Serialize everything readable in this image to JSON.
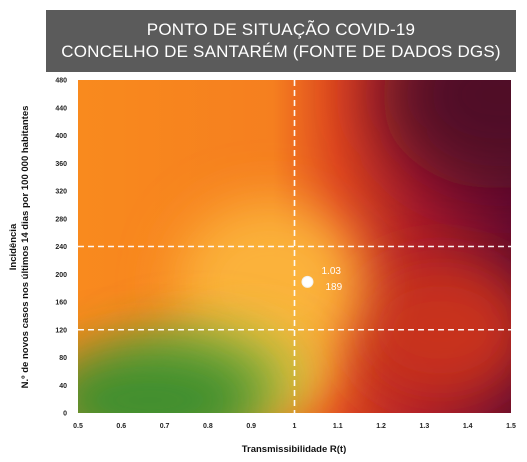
{
  "chart_data": {
    "type": "scatter",
    "title_lines": [
      "PONTO DE SITUAÇÃO COVID-19",
      "CONCELHO DE SANTARÉM (FONTE DE DADOS DGS)"
    ],
    "xlabel": "Transmissibilidade R(t)",
    "ylabel_lines": [
      "Incidência",
      "N.º de novos casos nos últimos 14 dias por 100 000 habitantes"
    ],
    "xlim": [
      0.5,
      1.5
    ],
    "ylim": [
      0,
      480
    ],
    "x_ticks": [
      "0.5",
      "0.6",
      "0.7",
      "0.8",
      "0.9",
      "1",
      "1.1",
      "1.2",
      "1.3",
      "1.4",
      "1.5"
    ],
    "y_ticks": [
      "0",
      "40",
      "80",
      "120",
      "160",
      "200",
      "240",
      "280",
      "320",
      "360",
      "400",
      "440",
      "480"
    ],
    "threshold_lines": {
      "x": [
        1.0
      ],
      "y": [
        120,
        240
      ]
    },
    "background": "risk gradient: green (low R(t), low incidence) to dark red (high R(t), high incidence)",
    "points": [
      {
        "x": 1.03,
        "y": 189,
        "label_x": "1.03",
        "label_y": "189"
      }
    ],
    "grid": false
  },
  "colors": {
    "banner": "#5b5b5b",
    "low": "#3f8f2f",
    "mid": "#f9a232",
    "high": "#c42a20",
    "very_high": "#5c0a2c"
  }
}
